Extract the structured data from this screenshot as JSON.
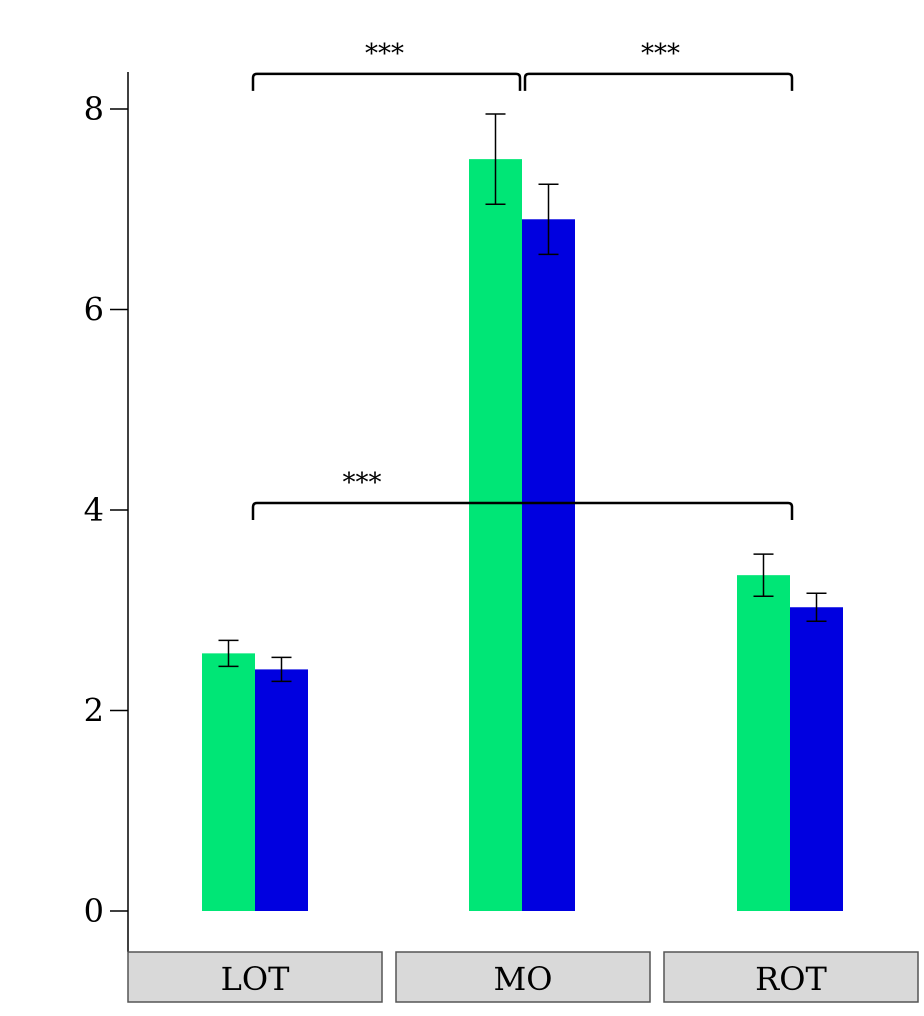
{
  "chart_data": {
    "type": "bar",
    "categories": [
      "LOT",
      "MO",
      "ROT"
    ],
    "series": [
      {
        "color": "#00e676",
        "values": [
          2.57,
          7.5,
          3.35
        ],
        "error": [
          0.13,
          0.45,
          0.21
        ]
      },
      {
        "color": "#0000e0",
        "values": [
          2.41,
          6.9,
          3.03
        ],
        "error": [
          0.12,
          0.35,
          0.14
        ]
      }
    ],
    "ylim": [
      0,
      8.3
    ],
    "yticks": [
      "0",
      "2",
      "4",
      "6",
      "8"
    ],
    "ytick_values": [
      0,
      2,
      4,
      6,
      8
    ],
    "grid": false,
    "annotations": [
      {
        "from": "LOT",
        "to": "MO",
        "text": "***",
        "y": 8.35
      },
      {
        "from": "MO",
        "to": "ROT",
        "text": "***",
        "y": 8.35
      },
      {
        "from": "LOT",
        "to": "ROT",
        "text": "***",
        "y": 4.07
      }
    ]
  }
}
